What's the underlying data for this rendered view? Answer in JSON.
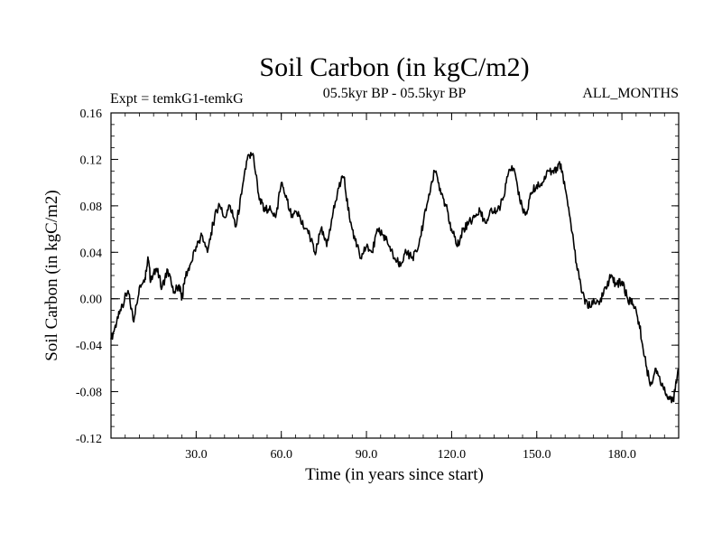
{
  "chart_data": {
    "type": "line",
    "title": "Soil Carbon (in kgC/m2)",
    "subtitle_left": "Expt = temkG1-temkG",
    "subtitle_center": "05.5kyr BP - 05.5kyr BP",
    "subtitle_right": "ALL_MONTHS",
    "xlabel": "Time (in years since start)",
    "ylabel": "Soil Carbon (in kgC/m2)",
    "xlim": [
      0,
      200
    ],
    "ylim": [
      -0.12,
      0.16
    ],
    "xticks": [
      30,
      60,
      90,
      120,
      150,
      180
    ],
    "xtick_labels": [
      "30.0",
      "60.0",
      "90.0",
      "120.0",
      "150.0",
      "180.0"
    ],
    "yticks": [
      -0.12,
      -0.08,
      -0.04,
      0.0,
      0.04,
      0.08,
      0.12,
      0.16
    ],
    "ytick_labels": [
      "-0.12",
      "-0.08",
      "-0.04",
      "0.00",
      "0.04",
      "0.08",
      "0.12",
      "0.16"
    ],
    "reference_line": {
      "y": 0.0,
      "style": "dashed"
    },
    "series": [
      {
        "name": "Soil Carbon",
        "x": [
          0,
          2,
          4,
          6,
          8,
          10,
          12,
          13,
          14,
          16,
          18,
          20,
          22,
          24,
          25,
          26,
          28,
          30,
          32,
          34,
          36,
          38,
          40,
          42,
          44,
          46,
          48,
          50,
          52,
          54,
          56,
          58,
          60,
          62,
          64,
          66,
          68,
          70,
          72,
          74,
          76,
          78,
          80,
          82,
          84,
          86,
          88,
          90,
          92,
          94,
          96,
          98,
          100,
          102,
          104,
          106,
          108,
          110,
          112,
          114,
          116,
          118,
          120,
          122,
          124,
          126,
          128,
          130,
          132,
          134,
          136,
          138,
          140,
          142,
          144,
          146,
          148,
          150,
          152,
          154,
          156,
          158,
          160,
          162,
          164,
          166,
          168,
          170,
          172,
          174,
          176,
          178,
          180,
          182,
          184,
          186,
          188,
          190,
          192,
          194,
          196,
          198,
          200
        ],
        "values": [
          -0.035,
          -0.02,
          -0.005,
          0.007,
          -0.02,
          0.01,
          0.018,
          0.036,
          0.015,
          0.026,
          0.01,
          0.025,
          0.005,
          0.012,
          0.0,
          0.018,
          0.03,
          0.045,
          0.055,
          0.04,
          0.065,
          0.082,
          0.07,
          0.08,
          0.062,
          0.09,
          0.12,
          0.125,
          0.09,
          0.075,
          0.08,
          0.07,
          0.1,
          0.085,
          0.07,
          0.075,
          0.06,
          0.055,
          0.038,
          0.06,
          0.045,
          0.07,
          0.095,
          0.105,
          0.07,
          0.05,
          0.035,
          0.045,
          0.04,
          0.06,
          0.055,
          0.045,
          0.035,
          0.028,
          0.04,
          0.035,
          0.042,
          0.065,
          0.09,
          0.11,
          0.095,
          0.08,
          0.06,
          0.045,
          0.06,
          0.065,
          0.07,
          0.075,
          0.065,
          0.078,
          0.075,
          0.085,
          0.108,
          0.112,
          0.085,
          0.072,
          0.09,
          0.098,
          0.1,
          0.11,
          0.108,
          0.118,
          0.095,
          0.065,
          0.03,
          0.005,
          -0.008,
          0.0,
          -0.005,
          0.01,
          0.018,
          0.012,
          0.015,
          0.0,
          -0.005,
          -0.02,
          -0.05,
          -0.075,
          -0.06,
          -0.075,
          -0.085,
          -0.088,
          -0.06
        ]
      }
    ]
  }
}
